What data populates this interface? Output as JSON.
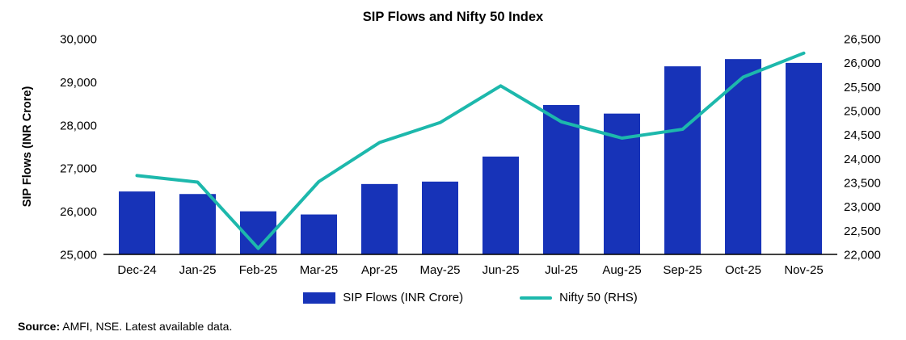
{
  "legend": [
    {
      "label": "SIP Flows (INR Crore)",
      "color": "#1733b8",
      "type": "bar"
    },
    {
      "label": "Nifty 50 (RHS)",
      "color": "#1db8ac",
      "type": "line"
    }
  ],
  "source_bold": "Source:",
  "source_text": " AMFI, NSE. Latest available data.",
  "colors": {
    "bar": "#1733b8",
    "line": "#1db8ac",
    "axis": "#000000",
    "text": "#000000"
  },
  "chart_data": {
    "type": "bar",
    "title": "SIP Flows and Nifty 50 Index",
    "categories": [
      "Dec-24",
      "Jan-25",
      "Feb-25",
      "Mar-25",
      "Apr-25",
      "May-25",
      "Jun-25",
      "Jul-25",
      "Aug-25",
      "Sep-25",
      "Oct-25",
      "Nov-25"
    ],
    "series": [
      {
        "name": "SIP Flows (INR Crore)",
        "type": "bar",
        "axis": "left",
        "values": [
          26459,
          26400,
          25999,
          25926,
          26632,
          26688,
          27269,
          28464,
          28265,
          29361,
          29529,
          29440
        ]
      },
      {
        "name": "Nifty 50 (RHS)",
        "type": "line",
        "axis": "right",
        "values": [
          23645,
          23508,
          22125,
          23519,
          24334,
          24751,
          25517,
          24768,
          24427,
          24611,
          25700,
          26200
        ]
      }
    ],
    "left_axis": {
      "label": "SIP Flows (INR Crore)",
      "min": 25000,
      "max": 30000,
      "step": 1000
    },
    "right_axis": {
      "label": "",
      "min": 22000,
      "max": 26500,
      "step": 500
    },
    "grid": false,
    "legend_position": "bottom"
  }
}
